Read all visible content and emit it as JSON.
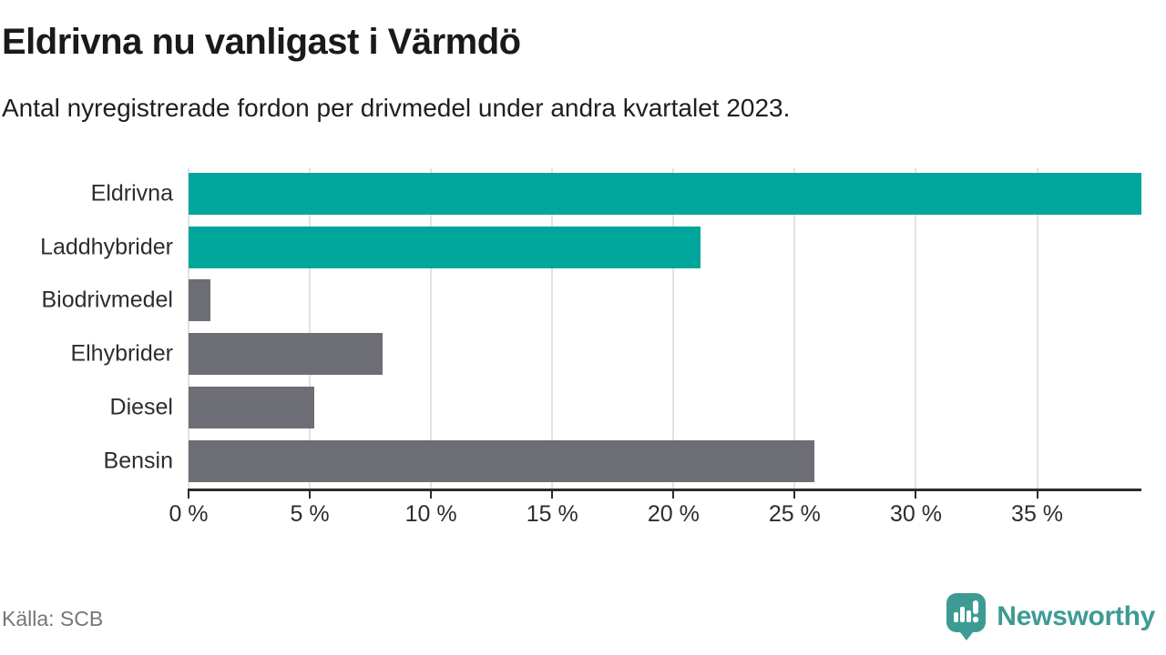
{
  "header": {
    "title": "Eldrivna nu vanligast i Värmdö",
    "subtitle": "Antal nyregistrerade fordon per drivmedel under andra kvartalet 2023."
  },
  "footer": {
    "source": "Källa: SCB",
    "brand": "Newsworthy"
  },
  "colors": {
    "highlight_teal": "#00a59b",
    "default_gray": "#6d6d76",
    "gridline": "#e2e2e2",
    "axis": "#2b2b2b",
    "title_text": "#1a1a1a",
    "label_text": "#2d2d2d",
    "source_text": "#767676",
    "brand_teal": "#3e9b94"
  },
  "chart_data": {
    "type": "bar",
    "orientation": "horizontal",
    "title": "Eldrivna nu vanligast i Värmdö",
    "subtitle": "Antal nyregistrerade fordon per drivmedel under andra kvartalet 2023.",
    "xlabel": "",
    "ylabel": "",
    "unit": "%",
    "categories": [
      "Eldrivna",
      "Laddhybrider",
      "Biodrivmedel",
      "Elhybrider",
      "Diesel",
      "Bensin"
    ],
    "values": [
      39.3,
      21.1,
      0.9,
      8.0,
      5.2,
      25.8
    ],
    "bar_colors": [
      "#00a59b",
      "#00a59b",
      "#6d6d76",
      "#6d6d76",
      "#6d6d76",
      "#6d6d76"
    ],
    "xlim": [
      0,
      39.3
    ],
    "x_ticks": [
      0,
      5,
      10,
      15,
      20,
      25,
      30,
      35
    ],
    "x_tick_labels": [
      "0 %",
      "5 %",
      "10 %",
      "15 %",
      "20 %",
      "25 %",
      "30 %",
      "35 %"
    ],
    "grid": true,
    "legend_position": "none"
  }
}
